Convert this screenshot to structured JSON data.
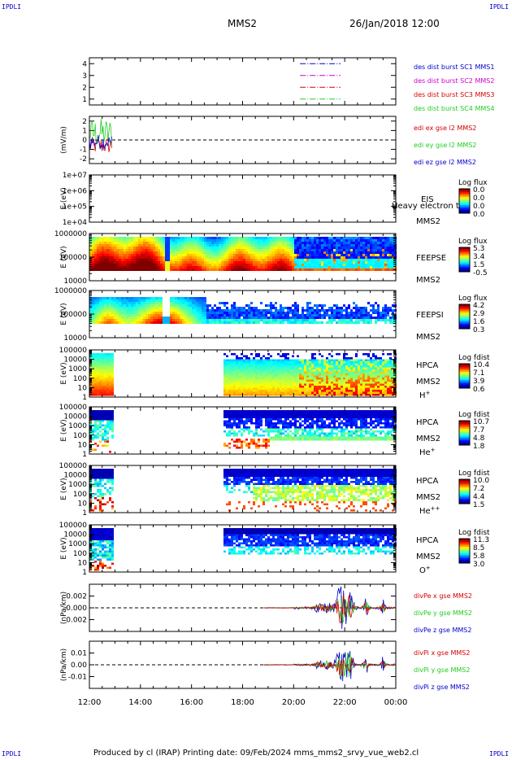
{
  "corners": {
    "label": "IPDLI"
  },
  "header": {
    "title": "MMS2",
    "datetime": "26/Jan/2018 12:00"
  },
  "footer": {
    "text": "Produced by cl (IRAP)   Printing date: 09/Feb/2024   mms_mms2_srvy_vue_web2.cl"
  },
  "time_axis": {
    "ticks": [
      "12:00",
      "14:00",
      "16:00",
      "18:00",
      "20:00",
      "22:00",
      "00:00"
    ]
  },
  "colors": {
    "red": "#d40000",
    "green": "#22cc22",
    "blue": "#0000cc",
    "magenta": "#cc00cc",
    "dashed": "#000000"
  },
  "chart_data": [
    {
      "type": "line",
      "panel": "spacecraft-availability",
      "ylabel": "",
      "yticks": [
        "1",
        "2",
        "3",
        "4"
      ],
      "ylim": [
        0.5,
        4.5
      ],
      "series": [
        {
          "name": "des dist burst SC1 MMS1",
          "color": "#0000cc",
          "y": 4,
          "x_range": [
            "20:15",
            "21:50"
          ]
        },
        {
          "name": "des dist burst SC2 MMS2",
          "color": "#cc00cc",
          "y": 3,
          "x_range": [
            "20:15",
            "21:50"
          ]
        },
        {
          "name": "des dist burst SC3 MMS3",
          "color": "#d40000",
          "y": 2,
          "x_range": [
            "20:15",
            "21:50"
          ]
        },
        {
          "name": "des dist burst SC4 MMS4",
          "color": "#22cc22",
          "y": 1,
          "x_range": [
            "20:15",
            "21:50"
          ]
        }
      ]
    },
    {
      "type": "line",
      "panel": "edi-efield",
      "ylabel": "(mV/m)",
      "yticks": [
        "-2",
        "-1",
        "0",
        "1",
        "2"
      ],
      "ylim": [
        -2.5,
        2.5
      ],
      "series": [
        {
          "name": "edi ex gse l2 MMS2",
          "color": "#d40000"
        },
        {
          "name": "edi ey gse l2 MMS2",
          "color": "#22cc22"
        },
        {
          "name": "edi ez gse l2 MMS2",
          "color": "#0000cc"
        }
      ],
      "data_extent": [
        "12:00",
        "12:55"
      ]
    },
    {
      "type": "heatmap",
      "panel": "eis",
      "ylabel": "E (eV)",
      "yticks": [
        "1e+04",
        "1e+05",
        "1e+06",
        "1e+07"
      ],
      "instrument": [
        "EIS",
        "MMS2"
      ],
      "overlay_text": "Heavy electron to",
      "colorbar": {
        "title": "Log flux",
        "ticks": [
          "0.0",
          "0.0",
          "0.0",
          "0.0"
        ]
      }
    },
    {
      "type": "heatmap",
      "panel": "feepse",
      "ylabel": "E (eV)",
      "yticks": [
        "10000",
        "100000",
        "1000000"
      ],
      "instrument": [
        "FEEPSE",
        "MMS2"
      ],
      "colorbar": {
        "title": "Log flux",
        "ticks": [
          "5.3",
          "3.4",
          "1.5",
          "-0.5"
        ]
      }
    },
    {
      "type": "heatmap",
      "panel": "feepsi",
      "ylabel": "E (eV)",
      "yticks": [
        "10000",
        "100000",
        "1000000"
      ],
      "instrument": [
        "FEEPSI",
        "MMS2"
      ],
      "colorbar": {
        "title": "Log flux",
        "ticks": [
          "4.2",
          "2.9",
          "1.6",
          "0.3"
        ]
      }
    },
    {
      "type": "heatmap",
      "panel": "hpca-h",
      "ylabel": "E (eV)",
      "yticks": [
        "1",
        "10",
        "100",
        "1000",
        "10000",
        "100000"
      ],
      "instrument": [
        "HPCA",
        "MMS2"
      ],
      "species": {
        "base": "H",
        "sup": "+"
      },
      "colorbar": {
        "title": "Log fdist",
        "ticks": [
          "10.4",
          "7.1",
          "3.9",
          "0.6"
        ]
      }
    },
    {
      "type": "heatmap",
      "panel": "hpca-he",
      "ylabel": "E (eV)",
      "yticks": [
        "1",
        "10",
        "100",
        "1000",
        "10000",
        "100000"
      ],
      "instrument": [
        "HPCA",
        "MMS2"
      ],
      "species": {
        "base": "He",
        "sup": "+"
      },
      "colorbar": {
        "title": "Log fdist",
        "ticks": [
          "10.7",
          "7.7",
          "4.8",
          "1.8"
        ]
      }
    },
    {
      "type": "heatmap",
      "panel": "hpca-hepp",
      "ylabel": "E (eV)",
      "yticks": [
        "1",
        "10",
        "100",
        "1000",
        "10000",
        "100000"
      ],
      "instrument": [
        "HPCA",
        "MMS2"
      ],
      "species": {
        "base": "He",
        "sup": "++"
      },
      "colorbar": {
        "title": "Log fdist",
        "ticks": [
          "10.0",
          "7.2",
          "4.4",
          "1.5"
        ]
      }
    },
    {
      "type": "heatmap",
      "panel": "hpca-o",
      "ylabel": "E (eV)",
      "yticks": [
        "1",
        "10",
        "100",
        "1000",
        "10000",
        "100000"
      ],
      "instrument": [
        "HPCA",
        "MMS2"
      ],
      "species": {
        "base": "O",
        "sup": "+"
      },
      "colorbar": {
        "title": "Log fdist",
        "ticks": [
          "11.3",
          "8.5",
          "5.8",
          "3.0"
        ]
      }
    },
    {
      "type": "line",
      "panel": "divpe",
      "ylabel": "(nPa/km)",
      "yticks": [
        "-0.002",
        "0.000",
        "0.002"
      ],
      "ylim": [
        -0.004,
        0.004
      ],
      "series": [
        {
          "name": "divPe x gse MMS2",
          "color": "#d40000"
        },
        {
          "name": "divPe y gse MMS2",
          "color": "#22cc22"
        },
        {
          "name": "divPe z gse MMS2",
          "color": "#0000cc"
        }
      ]
    },
    {
      "type": "line",
      "panel": "divpi",
      "ylabel": "(nPa/km)",
      "yticks": [
        "-0.01",
        "0.00",
        "0.01"
      ],
      "ylim": [
        -0.02,
        0.02
      ],
      "series": [
        {
          "name": "divPi x gse MMS2",
          "color": "#d40000"
        },
        {
          "name": "divPi y gse MMS2",
          "color": "#22cc22"
        },
        {
          "name": "divPi z gse MMS2",
          "color": "#0000cc"
        }
      ]
    }
  ]
}
